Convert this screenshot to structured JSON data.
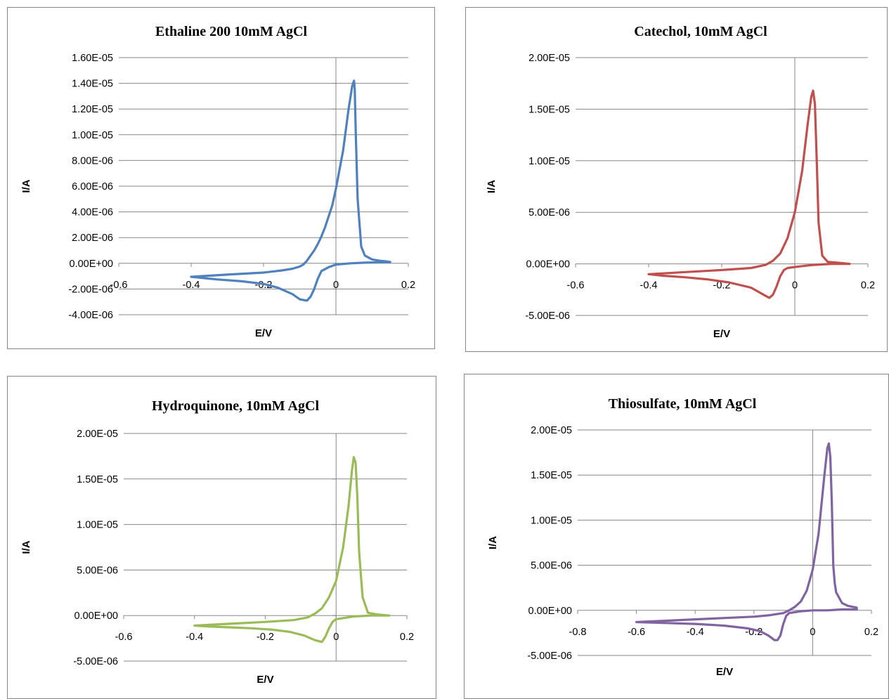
{
  "chart_data": [
    {
      "type": "line",
      "title": "Ethaline 200 10mM AgCl",
      "xlabel": "E/V",
      "ylabel": "I/A",
      "xlim": [
        -0.6,
        0.2
      ],
      "xticks": [
        -0.6,
        -0.4,
        -0.2,
        0,
        0.2
      ],
      "xtick_labels": [
        "-0.6",
        "-0.4",
        "-0.2",
        "0",
        "0.2"
      ],
      "ylim": [
        -4e-06,
        1.6e-05
      ],
      "yticks": [
        -4e-06,
        -2e-06,
        0,
        2e-06,
        4e-06,
        6e-06,
        8e-06,
        1e-05,
        1.2e-05,
        1.4e-05,
        1.6e-05
      ],
      "ytick_labels": [
        "-4.00E-06",
        "-2.00E-06",
        "0.00E+00",
        "2.00E-06",
        "4.00E-06",
        "6.00E-06",
        "8.00E-06",
        "1.00E-05",
        "1.20E-05",
        "1.40E-05",
        "1.60E-05"
      ],
      "grid": true,
      "color": "#4F81BD",
      "series": [
        {
          "x": [
            -0.4,
            -0.3,
            -0.2,
            -0.15,
            -0.12,
            -0.1,
            -0.09,
            -0.08,
            -0.07,
            -0.06,
            -0.05,
            -0.04,
            -0.03,
            -0.01,
            0.0,
            0.02,
            0.035,
            0.045,
            0.05,
            0.052,
            0.055,
            0.06,
            0.07,
            0.08,
            0.1,
            0.12,
            0.14,
            0.15,
            0.12,
            0.08,
            0.04,
            0.0,
            -0.01,
            -0.02,
            -0.04,
            -0.05,
            -0.06,
            -0.07,
            -0.08,
            -0.1,
            -0.12,
            -0.16,
            -0.2,
            -0.26,
            -0.33,
            -0.4
          ],
          "y": [
            -1.05e-06,
            -8.8e-07,
            -7.2e-07,
            -5.6e-07,
            -4.2e-07,
            -2.5e-07,
            -1e-07,
            2e-07,
            6e-07,
            1e-06,
            1.5e-06,
            2.1e-06,
            2.8e-06,
            4.5e-06,
            5.8e-06,
            8.8e-06,
            1.2e-05,
            1.38e-05,
            1.42e-05,
            1.35e-05,
            1e-05,
            5e-06,
            1.3e-06,
            6e-07,
            3e-07,
            2e-07,
            1.5e-07,
            1e-07,
            8e-08,
            5e-08,
            0,
            -1e-07,
            -2e-07,
            -3e-07,
            -6e-07,
            -1.2e-06,
            -2e-06,
            -2.6e-06,
            -2.9e-06,
            -2.8e-06,
            -2.4e-06,
            -1.9e-06,
            -1.6e-06,
            -1.4e-06,
            -1.25e-06,
            -1.05e-06
          ]
        }
      ]
    },
    {
      "type": "line",
      "title": "Catechol, 10mM AgCl",
      "xlabel": "E/V",
      "ylabel": "I/A",
      "xlim": [
        -0.6,
        0.2
      ],
      "xticks": [
        -0.6,
        -0.4,
        -0.2,
        0,
        0.2
      ],
      "xtick_labels": [
        "-0.6",
        "-0.4",
        "-0.2",
        "0",
        "0.2"
      ],
      "ylim": [
        -5e-06,
        2e-05
      ],
      "yticks": [
        -5e-06,
        0,
        5e-06,
        1e-05,
        1.5e-05,
        2e-05
      ],
      "ytick_labels": [
        "-5.00E-06",
        "0.00E+00",
        "5.00E-06",
        "1.00E-05",
        "1.50E-05",
        "2.00E-05"
      ],
      "grid": true,
      "color": "#C0504D",
      "series": [
        {
          "x": [
            -0.4,
            -0.3,
            -0.2,
            -0.12,
            -0.08,
            -0.06,
            -0.04,
            -0.02,
            0.0,
            0.02,
            0.035,
            0.045,
            0.05,
            0.055,
            0.06,
            0.065,
            0.075,
            0.09,
            0.12,
            0.15,
            0.1,
            0.05,
            0.0,
            -0.02,
            -0.03,
            -0.04,
            -0.05,
            -0.06,
            -0.07,
            -0.09,
            -0.12,
            -0.18,
            -0.24,
            -0.3,
            -0.36,
            -0.4
          ],
          "y": [
            -1e-06,
            -8e-07,
            -6e-07,
            -4e-07,
            -1e-07,
            3e-07,
            1e-06,
            2.5e-06,
            5e-06,
            9e-06,
            1.35e-05,
            1.62e-05,
            1.68e-05,
            1.55e-05,
            1e-05,
            4e-06,
            8e-07,
            2e-07,
            1e-07,
            0,
            0,
            -1e-07,
            -3e-07,
            -4e-07,
            -6e-07,
            -1.2e-06,
            -2.2e-06,
            -3e-06,
            -3.3e-06,
            -2.9e-06,
            -2.3e-06,
            -1.8e-06,
            -1.5e-06,
            -1.3e-06,
            -1.15e-06,
            -1e-06
          ]
        }
      ]
    },
    {
      "type": "line",
      "title": "Hydroquinone, 10mM AgCl",
      "xlabel": "E/V",
      "ylabel": "I/A",
      "xlim": [
        -0.6,
        0.2
      ],
      "xticks": [
        -0.6,
        -0.4,
        -0.2,
        0,
        0.2
      ],
      "xtick_labels": [
        "-0.6",
        "-0.4",
        "-0.2",
        "0",
        "0.2"
      ],
      "ylim": [
        -5e-06,
        2e-05
      ],
      "yticks": [
        -5e-06,
        0,
        5e-06,
        1e-05,
        1.5e-05,
        2e-05
      ],
      "ytick_labels": [
        "-5.00E-06",
        "0.00E+00",
        "5.00E-06",
        "1.00E-05",
        "1.50E-05",
        "2.00E-05"
      ],
      "grid": true,
      "color": "#9BBB59",
      "series": [
        {
          "x": [
            -0.4,
            -0.3,
            -0.2,
            -0.12,
            -0.08,
            -0.06,
            -0.04,
            -0.02,
            0.0,
            0.02,
            0.035,
            0.045,
            0.05,
            0.055,
            0.06,
            0.065,
            0.075,
            0.09,
            0.12,
            0.15,
            0.1,
            0.05,
            0.0,
            -0.01,
            -0.02,
            -0.03,
            -0.04,
            -0.06,
            -0.09,
            -0.13,
            -0.18,
            -0.24,
            -0.3,
            -0.36,
            -0.4
          ],
          "y": [
            -1.1e-06,
            -9e-07,
            -7e-07,
            -5e-07,
            -2e-07,
            2e-07,
            8e-07,
            2e-06,
            3.8e-06,
            7.5e-06,
            1.2e-05,
            1.6e-05,
            1.74e-05,
            1.68e-05,
            1.3e-05,
            7e-06,
            2e-06,
            3e-07,
            1e-07,
            0,
            0,
            -1e-07,
            -4e-07,
            -7e-07,
            -1.4e-06,
            -2.3e-06,
            -2.9e-06,
            -2.7e-06,
            -2.2e-06,
            -1.8e-06,
            -1.55e-06,
            -1.4e-06,
            -1.3e-06,
            -1.2e-06,
            -1.1e-06
          ]
        }
      ]
    },
    {
      "type": "line",
      "title": "Thiosulfate, 10mM AgCl",
      "xlabel": "E/V",
      "ylabel": "I/A",
      "xlim": [
        -0.8,
        0.2
      ],
      "xticks": [
        -0.8,
        -0.6,
        -0.4,
        -0.2,
        0,
        0.2
      ],
      "xtick_labels": [
        "-0.8",
        "-0.6",
        "-0.4",
        "-0.2",
        "0",
        "0.2"
      ],
      "ylim": [
        -5e-06,
        2e-05
      ],
      "yticks": [
        -5e-06,
        0,
        5e-06,
        1e-05,
        1.5e-05,
        2e-05
      ],
      "ytick_labels": [
        "-5.00E-06",
        "0.00E+00",
        "5.00E-06",
        "1.00E-05",
        "1.50E-05",
        "2.00E-05"
      ],
      "grid": true,
      "color": "#8064A2",
      "series": [
        {
          "x": [
            -0.6,
            -0.5,
            -0.4,
            -0.3,
            -0.2,
            -0.15,
            -0.1,
            -0.08,
            -0.06,
            -0.04,
            -0.02,
            0.0,
            0.02,
            0.04,
            0.05,
            0.055,
            0.06,
            0.065,
            0.07,
            0.075,
            0.08,
            0.1,
            0.12,
            0.15,
            0.15,
            0.1,
            0.05,
            0.0,
            -0.04,
            -0.08,
            -0.09,
            -0.1,
            -0.11,
            -0.12,
            -0.13,
            -0.15,
            -0.18,
            -0.22,
            -0.3,
            -0.4,
            -0.5,
            -0.6
          ],
          "y": [
            -1.3e-06,
            -1.15e-06,
            -1e-06,
            -8.5e-07,
            -7e-07,
            -5.5e-07,
            -3e-07,
            0,
            4e-07,
            1e-06,
            2.2e-06,
            4.5e-06,
            8.5e-06,
            1.5e-05,
            1.8e-05,
            1.85e-05,
            1.7e-05,
            1.2e-05,
            5e-06,
            3e-06,
            2e-06,
            8e-07,
            5e-07,
            3e-07,
            1e-07,
            1e-07,
            0,
            0,
            -1e-07,
            -3e-07,
            -6e-07,
            -1.5e-06,
            -2.8e-06,
            -3.3e-06,
            -3.3e-06,
            -2.8e-06,
            -2.3e-06,
            -2e-06,
            -1.7e-06,
            -1.5e-06,
            -1.4e-06,
            -1.3e-06
          ]
        }
      ]
    }
  ]
}
